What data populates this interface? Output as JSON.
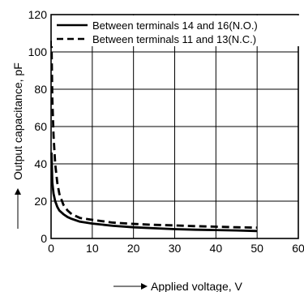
{
  "chart_data": {
    "type": "line",
    "xlabel": "Applied voltage, V",
    "ylabel": "Output capacitance, pF",
    "xlim": [
      0,
      60
    ],
    "ylim": [
      0,
      120
    ],
    "x_ticks": [
      "0",
      "10",
      "20",
      "30",
      "40",
      "50",
      "60"
    ],
    "y_ticks": [
      "0",
      "20",
      "40",
      "60",
      "80",
      "100",
      "120"
    ],
    "grid": true,
    "legend_position": "top",
    "series": [
      {
        "name": "Between terminals 14 and 16(N.O.)",
        "line_style": "solid",
        "color": "#000000",
        "x": [
          0.1,
          0.3,
          0.6,
          1,
          1.5,
          2,
          3,
          4,
          5,
          7,
          10,
          15,
          20,
          25,
          30,
          35,
          40,
          45,
          50
        ],
        "y": [
          46,
          30,
          24,
          20,
          17,
          15,
          13,
          11.5,
          10.5,
          9,
          8,
          6.8,
          6,
          5.5,
          5,
          4.7,
          4.5,
          4.3,
          4
        ]
      },
      {
        "name": "Between terminals 11 and 13(N.C.)",
        "line_style": "dashed",
        "color": "#000000",
        "x": [
          0.1,
          0.3,
          0.6,
          1,
          1.5,
          2,
          3,
          4,
          5,
          7,
          10,
          15,
          20,
          25,
          30,
          35,
          40,
          45,
          50
        ],
        "y": [
          106,
          75,
          55,
          40,
          30,
          24,
          18,
          15,
          13,
          11,
          10,
          8.5,
          7.8,
          7.3,
          7,
          6.6,
          6.3,
          6,
          5.8
        ]
      }
    ]
  }
}
